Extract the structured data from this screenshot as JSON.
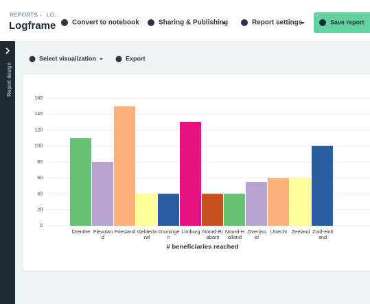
{
  "header": {
    "breadcrumb": "REPORTS",
    "breadcrumb_current": "LO...",
    "title": "Logframe",
    "actions": [
      "Convert to notebook",
      "Sharing & Publishing",
      "Report settings"
    ],
    "save": "Save report"
  },
  "sidebar": {
    "label": "Report design"
  },
  "toolbar": {
    "select": "Select visualization",
    "export": "Export"
  },
  "chart_data": {
    "type": "bar",
    "x_label": "# beneficiaries reached",
    "categories": [
      "Drenthe",
      "Flevoland",
      "Friesland",
      "Gelderland",
      "Groningen",
      "Limburg",
      "Noord-Brabant",
      "Noord-Holland",
      "Overijssel",
      "Utrecht",
      "Zeeland",
      "Zuid-Holland"
    ],
    "values": [
      110,
      80,
      150,
      40,
      40,
      130,
      40,
      40,
      55,
      60,
      60,
      100
    ],
    "colors": [
      "#66c075",
      "#b7a3cf",
      "#fdb27d",
      "#ffff99",
      "#2a5d9f",
      "#e6127f",
      "#c8501f",
      "#66c075",
      "#b7a3cf",
      "#fdb27d",
      "#ffff99",
      "#2a5d9f"
    ],
    "ylim": [
      0,
      160
    ],
    "yticks": [
      0,
      20,
      40,
      60,
      80,
      100,
      120,
      140,
      160
    ],
    "grid": true
  }
}
